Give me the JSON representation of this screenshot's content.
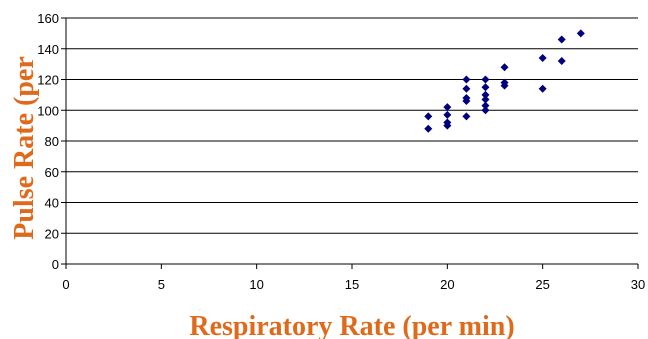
{
  "chart_data": {
    "type": "scatter",
    "title": "",
    "xlabel": "Respiratory Rate (per min)",
    "ylabel": "Pulse Rate (per",
    "xlim": [
      0,
      30
    ],
    "ylim": [
      0,
      160
    ],
    "x_ticks": [
      0,
      5,
      10,
      15,
      20,
      25,
      30
    ],
    "y_ticks": [
      0,
      20,
      40,
      60,
      80,
      100,
      120,
      140,
      160
    ],
    "x_tick_labels": [
      "0",
      "5",
      "10",
      "15",
      "20",
      "25",
      "30"
    ],
    "y_tick_labels": [
      "0",
      "20",
      "40",
      "60",
      "80",
      "100",
      "120",
      "140",
      "160"
    ],
    "grid": "horizontal",
    "marker": "diamond",
    "colors": {
      "points": "#00007f",
      "axis_title": "#e06a1b",
      "grid": "#000000"
    },
    "points": [
      {
        "x": 19,
        "y": 96
      },
      {
        "x": 19,
        "y": 88
      },
      {
        "x": 20,
        "y": 102
      },
      {
        "x": 20,
        "y": 97
      },
      {
        "x": 20,
        "y": 92
      },
      {
        "x": 20,
        "y": 90
      },
      {
        "x": 21,
        "y": 120
      },
      {
        "x": 21,
        "y": 114
      },
      {
        "x": 21,
        "y": 108
      },
      {
        "x": 21,
        "y": 106
      },
      {
        "x": 21,
        "y": 96
      },
      {
        "x": 22,
        "y": 120
      },
      {
        "x": 22,
        "y": 115
      },
      {
        "x": 22,
        "y": 110
      },
      {
        "x": 22,
        "y": 107
      },
      {
        "x": 22,
        "y": 103
      },
      {
        "x": 22,
        "y": 100
      },
      {
        "x": 23,
        "y": 128
      },
      {
        "x": 23,
        "y": 118
      },
      {
        "x": 23,
        "y": 116
      },
      {
        "x": 25,
        "y": 134
      },
      {
        "x": 25,
        "y": 114
      },
      {
        "x": 26,
        "y": 146
      },
      {
        "x": 26,
        "y": 132
      },
      {
        "x": 27,
        "y": 150
      }
    ]
  }
}
